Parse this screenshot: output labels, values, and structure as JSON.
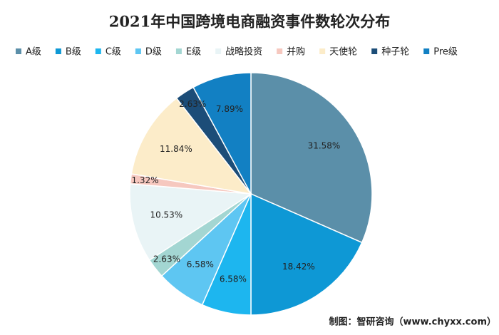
{
  "chart_data": {
    "type": "pie",
    "title": "2021年中国跨境电商融资事件数轮次分布",
    "categories": [
      "A级",
      "B级",
      "C级",
      "D级",
      "E级",
      "战略投资",
      "并购",
      "天使轮",
      "种子轮",
      "Pre级"
    ],
    "values": [
      31.58,
      18.42,
      6.58,
      6.58,
      2.63,
      10.53,
      1.32,
      11.84,
      2.63,
      7.89
    ],
    "value_labels": [
      "31.58%",
      "18.42%",
      "6.58%",
      "6.58%",
      "2.63%",
      "10.53%",
      "1.32%",
      "11.84%",
      "2.63%",
      "7.89%"
    ],
    "colors": [
      "#5b8fa9",
      "#0e98d5",
      "#1db6ef",
      "#5ec6f2",
      "#a3d6d2",
      "#e9f4f6",
      "#f6c8bf",
      "#fcecc9",
      "#1c4d78",
      "#1280c3"
    ],
    "legend": "top",
    "source": "制图：智研咨询（www.chyxx.com）"
  }
}
